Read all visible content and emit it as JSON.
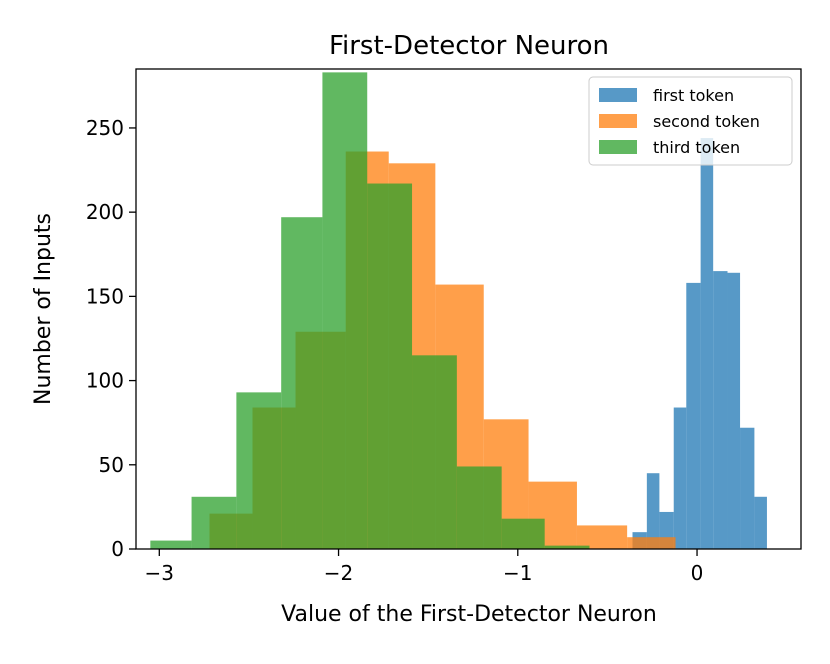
{
  "chart_data": {
    "type": "histogram",
    "title": "First-Detector Neuron",
    "xlabel": "Value of the First-Detector Neuron",
    "ylabel": "Number of Inputs",
    "xlim": [
      -3.13,
      0.58
    ],
    "ylim": [
      0,
      285
    ],
    "x_ticks": [
      -3,
      -2,
      -1,
      0
    ],
    "x_tick_labels": [
      "−3",
      "−2",
      "−1",
      "0"
    ],
    "y_ticks": [
      0,
      50,
      100,
      150,
      200,
      250
    ],
    "y_tick_labels": [
      "0",
      "50",
      "100",
      "150",
      "200",
      "250"
    ],
    "legend": {
      "position": "top-right",
      "entries": [
        "first token",
        "second token",
        "third token"
      ]
    },
    "grid": false,
    "series": [
      {
        "name": "first token",
        "color": "#1f77b4",
        "opacity": 0.75,
        "bins": [
          {
            "x0": -0.36,
            "x1": -0.28,
            "y": 10
          },
          {
            "x0": -0.28,
            "x1": -0.21,
            "y": 45
          },
          {
            "x0": -0.21,
            "x1": -0.13,
            "y": 22
          },
          {
            "x0": -0.13,
            "x1": -0.06,
            "y": 84
          },
          {
            "x0": -0.06,
            "x1": 0.02,
            "y": 158
          },
          {
            "x0": 0.02,
            "x1": 0.09,
            "y": 244
          },
          {
            "x0": 0.09,
            "x1": 0.17,
            "y": 165
          },
          {
            "x0": 0.17,
            "x1": 0.24,
            "y": 164
          },
          {
            "x0": 0.24,
            "x1": 0.32,
            "y": 72
          },
          {
            "x0": 0.32,
            "x1": 0.39,
            "y": 31
          }
        ]
      },
      {
        "name": "second token",
        "color": "#ff7f0e",
        "opacity": 0.75,
        "bins": [
          {
            "x0": -2.72,
            "x1": -2.48,
            "y": 21
          },
          {
            "x0": -2.48,
            "x1": -2.24,
            "y": 84
          },
          {
            "x0": -2.24,
            "x1": -1.96,
            "y": 129
          },
          {
            "x0": -1.96,
            "x1": -1.72,
            "y": 236
          },
          {
            "x0": -1.72,
            "x1": -1.46,
            "y": 229
          },
          {
            "x0": -1.46,
            "x1": -1.19,
            "y": 157
          },
          {
            "x0": -1.19,
            "x1": -0.94,
            "y": 77
          },
          {
            "x0": -0.94,
            "x1": -0.67,
            "y": 40
          },
          {
            "x0": -0.67,
            "x1": -0.39,
            "y": 14
          },
          {
            "x0": -0.39,
            "x1": -0.12,
            "y": 7
          }
        ]
      },
      {
        "name": "third token",
        "color": "#2ca02c",
        "opacity": 0.75,
        "bins": [
          {
            "x0": -3.05,
            "x1": -2.82,
            "y": 5
          },
          {
            "x0": -2.82,
            "x1": -2.57,
            "y": 31
          },
          {
            "x0": -2.57,
            "x1": -2.32,
            "y": 93
          },
          {
            "x0": -2.32,
            "x1": -2.09,
            "y": 197
          },
          {
            "x0": -2.09,
            "x1": -1.84,
            "y": 283
          },
          {
            "x0": -1.84,
            "x1": -1.59,
            "y": 217
          },
          {
            "x0": -1.59,
            "x1": -1.34,
            "y": 115
          },
          {
            "x0": -1.34,
            "x1": -1.09,
            "y": 49
          },
          {
            "x0": -1.09,
            "x1": -0.85,
            "y": 18
          },
          {
            "x0": -0.85,
            "x1": -0.6,
            "y": 2
          }
        ]
      }
    ]
  }
}
